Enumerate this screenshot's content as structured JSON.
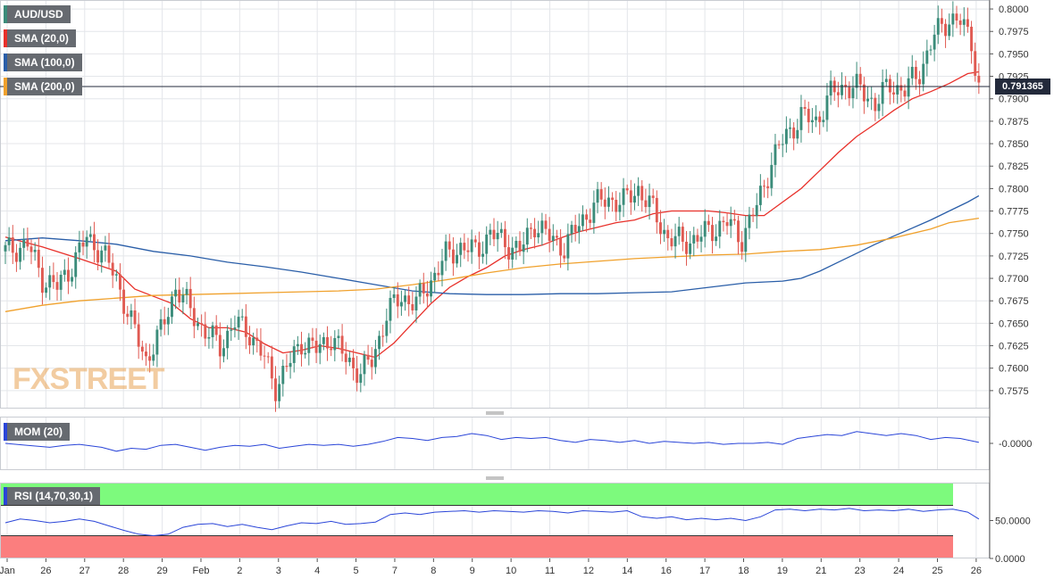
{
  "symbol": "AUD/USD",
  "logo_text": "FXSTREET",
  "indicators": {
    "sma20": "SMA (20,0)",
    "sma100": "SMA (100,0)",
    "sma200": "SMA (200,0)",
    "mom": "MOM (20)",
    "rsi": "RSI (14,70,30,1)"
  },
  "colors": {
    "candle_up": "#3b8c7a",
    "candle_down": "#e05a52",
    "sma20": "#e8302a",
    "sma100": "#2a5ea8",
    "sma200": "#f0a12c",
    "mom_line": "#2a45d8",
    "rsi_line": "#2a45d8",
    "rsi_overbought": "#7dfa7d",
    "rsi_oversold": "#fb7e7e",
    "price_tag": "#232a3b"
  },
  "current_price": "0.791365",
  "mom_axis_label": "-0.0000",
  "rsi_axis_labels": [
    "50.0000",
    "0.0000"
  ],
  "chart_data": {
    "type": "candlestick",
    "title": "AUD/USD",
    "x_tick_labels": [
      "Jan",
      "26",
      "27",
      "28",
      "29",
      "Feb",
      "2",
      "3",
      "4",
      "5",
      "7",
      "8",
      "9",
      "10",
      "11",
      "12",
      "14",
      "16",
      "17",
      "18",
      "19",
      "21",
      "23",
      "24",
      "25",
      "26"
    ],
    "y_tick_labels": [
      "0.8000",
      "0.7975",
      "0.7950",
      "0.7925",
      "0.7900",
      "0.7875",
      "0.7850",
      "0.7825",
      "0.7800",
      "0.7775",
      "0.7750",
      "0.7725",
      "0.7700",
      "0.7675",
      "0.7650",
      "0.7625",
      "0.7600",
      "0.7575"
    ],
    "ylim": [
      0.7555,
      0.801
    ],
    "grid": true,
    "current_price": 0.791365,
    "close_path": [
      [
        0,
        0.773
      ],
      [
        6,
        0.7738
      ],
      [
        10,
        0.77
      ],
      [
        14,
        0.769
      ],
      [
        18,
        0.7715
      ],
      [
        22,
        0.7745
      ],
      [
        26,
        0.773
      ],
      [
        30,
        0.77
      ],
      [
        34,
        0.765
      ],
      [
        38,
        0.761
      ],
      [
        42,
        0.764
      ],
      [
        46,
        0.769
      ],
      [
        50,
        0.7665
      ],
      [
        54,
        0.764
      ],
      [
        58,
        0.7625
      ],
      [
        62,
        0.765
      ],
      [
        66,
        0.764
      ],
      [
        70,
        0.761
      ],
      [
        73,
        0.758
      ],
      [
        76,
        0.76
      ],
      [
        80,
        0.763
      ],
      [
        84,
        0.762
      ],
      [
        88,
        0.7635
      ],
      [
        92,
        0.761
      ],
      [
        96,
        0.7595
      ],
      [
        99,
        0.7608
      ],
      [
        103,
        0.766
      ],
      [
        107,
        0.768
      ],
      [
        111,
        0.7672
      ],
      [
        115,
        0.7698
      ],
      [
        119,
        0.7725
      ],
      [
        123,
        0.7735
      ],
      [
        127,
        0.773
      ],
      [
        131,
        0.775
      ],
      [
        135,
        0.774
      ],
      [
        139,
        0.773
      ],
      [
        143,
        0.7762
      ],
      [
        147,
        0.7745
      ],
      [
        151,
        0.7735
      ],
      [
        155,
        0.776
      ],
      [
        159,
        0.7782
      ],
      [
        163,
        0.7788
      ],
      [
        167,
        0.7785
      ],
      [
        171,
        0.78
      ],
      [
        175,
        0.7775
      ],
      [
        179,
        0.7745
      ],
      [
        183,
        0.774
      ],
      [
        187,
        0.7745
      ],
      [
        191,
        0.7755
      ],
      [
        195,
        0.7762
      ],
      [
        199,
        0.7745
      ],
      [
        203,
        0.778
      ],
      [
        207,
        0.783
      ],
      [
        211,
        0.786
      ],
      [
        215,
        0.788
      ],
      [
        219,
        0.7875
      ],
      [
        223,
        0.7905
      ],
      [
        227,
        0.7915
      ],
      [
        231,
        0.791
      ],
      [
        235,
        0.7895
      ],
      [
        239,
        0.7915
      ],
      [
        243,
        0.791
      ],
      [
        247,
        0.793
      ],
      [
        251,
        0.797
      ],
      [
        255,
        0.799
      ],
      [
        258,
        0.7985
      ],
      [
        261,
        0.7965
      ],
      [
        263,
        0.7913
      ]
    ],
    "series": [
      {
        "name": "SMA (20,0)",
        "points": [
          [
            0,
            0.7746
          ],
          [
            10,
            0.7735
          ],
          [
            20,
            0.7722
          ],
          [
            30,
            0.7708
          ],
          [
            35,
            0.7688
          ],
          [
            40,
            0.768
          ],
          [
            45,
            0.7672
          ],
          [
            50,
            0.7655
          ],
          [
            55,
            0.7645
          ],
          [
            60,
            0.7645
          ],
          [
            65,
            0.764
          ],
          [
            70,
            0.7627
          ],
          [
            75,
            0.7617
          ],
          [
            80,
            0.762
          ],
          [
            85,
            0.7625
          ],
          [
            90,
            0.7622
          ],
          [
            95,
            0.7617
          ],
          [
            100,
            0.7612
          ],
          [
            105,
            0.7628
          ],
          [
            110,
            0.765
          ],
          [
            115,
            0.7672
          ],
          [
            120,
            0.769
          ],
          [
            125,
            0.7702
          ],
          [
            130,
            0.7712
          ],
          [
            135,
            0.7725
          ],
          [
            140,
            0.7732
          ],
          [
            145,
            0.7737
          ],
          [
            150,
            0.7745
          ],
          [
            155,
            0.7752
          ],
          [
            160,
            0.7757
          ],
          [
            165,
            0.7762
          ],
          [
            170,
            0.7765
          ],
          [
            175,
            0.7772
          ],
          [
            180,
            0.7775
          ],
          [
            185,
            0.7775
          ],
          [
            190,
            0.7775
          ],
          [
            195,
            0.7773
          ],
          [
            200,
            0.777
          ],
          [
            205,
            0.777
          ],
          [
            210,
            0.7785
          ],
          [
            215,
            0.78
          ],
          [
            220,
            0.782
          ],
          [
            225,
            0.784
          ],
          [
            230,
            0.7858
          ],
          [
            235,
            0.7872
          ],
          [
            240,
            0.7887
          ],
          [
            245,
            0.79
          ],
          [
            250,
            0.7908
          ],
          [
            255,
            0.7917
          ],
          [
            260,
            0.7928
          ],
          [
            263,
            0.793
          ]
        ]
      },
      {
        "name": "SMA (100,0)",
        "points": [
          [
            0,
            0.7742
          ],
          [
            10,
            0.7745
          ],
          [
            20,
            0.7742
          ],
          [
            30,
            0.7738
          ],
          [
            40,
            0.773
          ],
          [
            50,
            0.7725
          ],
          [
            60,
            0.7718
          ],
          [
            70,
            0.7713
          ],
          [
            80,
            0.7707
          ],
          [
            90,
            0.77
          ],
          [
            100,
            0.7693
          ],
          [
            110,
            0.7686
          ],
          [
            120,
            0.7683
          ],
          [
            130,
            0.7682
          ],
          [
            140,
            0.7682
          ],
          [
            150,
            0.7683
          ],
          [
            160,
            0.7683
          ],
          [
            170,
            0.7684
          ],
          [
            180,
            0.7685
          ],
          [
            190,
            0.769
          ],
          [
            200,
            0.7695
          ],
          [
            210,
            0.7697
          ],
          [
            215,
            0.77
          ],
          [
            220,
            0.7708
          ],
          [
            225,
            0.7718
          ],
          [
            230,
            0.7728
          ],
          [
            235,
            0.7738
          ],
          [
            240,
            0.7747
          ],
          [
            245,
            0.7756
          ],
          [
            250,
            0.7765
          ],
          [
            255,
            0.7775
          ],
          [
            260,
            0.7785
          ],
          [
            263,
            0.7792
          ]
        ]
      },
      {
        "name": "SMA (200,0)",
        "points": [
          [
            0,
            0.7663
          ],
          [
            10,
            0.767
          ],
          [
            20,
            0.7675
          ],
          [
            30,
            0.7678
          ],
          [
            40,
            0.7681
          ],
          [
            50,
            0.7682
          ],
          [
            60,
            0.7683
          ],
          [
            70,
            0.7684
          ],
          [
            80,
            0.7685
          ],
          [
            90,
            0.7686
          ],
          [
            100,
            0.7688
          ],
          [
            110,
            0.7693
          ],
          [
            120,
            0.7699
          ],
          [
            130,
            0.7706
          ],
          [
            140,
            0.7712
          ],
          [
            150,
            0.7716
          ],
          [
            160,
            0.7719
          ],
          [
            170,
            0.7722
          ],
          [
            180,
            0.7724
          ],
          [
            190,
            0.7726
          ],
          [
            200,
            0.7727
          ],
          [
            210,
            0.773
          ],
          [
            220,
            0.7732
          ],
          [
            230,
            0.7737
          ],
          [
            240,
            0.7745
          ],
          [
            250,
            0.7755
          ],
          [
            255,
            0.7762
          ],
          [
            263,
            0.7767
          ]
        ]
      }
    ],
    "momentum": [
      [
        0,
        0.0
      ],
      [
        6,
        -0.1
      ],
      [
        12,
        -0.2
      ],
      [
        16,
        -0.1
      ],
      [
        20,
        -0.05
      ],
      [
        26,
        -0.2
      ],
      [
        30,
        -0.4
      ],
      [
        34,
        -0.25
      ],
      [
        38,
        -0.3
      ],
      [
        42,
        -0.1
      ],
      [
        46,
        -0.05
      ],
      [
        50,
        -0.2
      ],
      [
        54,
        -0.35
      ],
      [
        58,
        -0.2
      ],
      [
        62,
        -0.1
      ],
      [
        66,
        -0.15
      ],
      [
        70,
        -0.05
      ],
      [
        74,
        -0.25
      ],
      [
        78,
        -0.15
      ],
      [
        82,
        -0.05
      ],
      [
        86,
        -0.1
      ],
      [
        90,
        -0.05
      ],
      [
        94,
        -0.15
      ],
      [
        98,
        -0.05
      ],
      [
        102,
        0.1
      ],
      [
        106,
        0.3
      ],
      [
        110,
        0.25
      ],
      [
        114,
        0.15
      ],
      [
        118,
        0.3
      ],
      [
        122,
        0.35
      ],
      [
        126,
        0.5
      ],
      [
        130,
        0.4
      ],
      [
        134,
        0.2
      ],
      [
        138,
        0.3
      ],
      [
        142,
        0.25
      ],
      [
        146,
        0.3
      ],
      [
        150,
        0.15
      ],
      [
        154,
        0.05
      ],
      [
        158,
        0.2
      ],
      [
        162,
        0.15
      ],
      [
        166,
        0.05
      ],
      [
        170,
        0.15
      ],
      [
        174,
        0.0
      ],
      [
        178,
        0.1
      ],
      [
        182,
        0.05
      ],
      [
        186,
        0.0
      ],
      [
        190,
        0.05
      ],
      [
        194,
        -0.05
      ],
      [
        198,
        0.0
      ],
      [
        202,
        0.0
      ],
      [
        206,
        0.05
      ],
      [
        210,
        -0.05
      ],
      [
        214,
        0.25
      ],
      [
        218,
        0.35
      ],
      [
        222,
        0.45
      ],
      [
        226,
        0.4
      ],
      [
        230,
        0.6
      ],
      [
        234,
        0.5
      ],
      [
        238,
        0.4
      ],
      [
        242,
        0.5
      ],
      [
        246,
        0.4
      ],
      [
        250,
        0.2
      ],
      [
        254,
        0.3
      ],
      [
        258,
        0.25
      ],
      [
        263,
        0.05
      ]
    ],
    "rsi": [
      [
        0,
        47
      ],
      [
        4,
        52
      ],
      [
        8,
        50
      ],
      [
        12,
        47
      ],
      [
        16,
        49
      ],
      [
        20,
        52
      ],
      [
        24,
        49
      ],
      [
        28,
        43
      ],
      [
        32,
        37
      ],
      [
        36,
        32
      ],
      [
        40,
        30
      ],
      [
        44,
        32
      ],
      [
        48,
        41
      ],
      [
        52,
        45
      ],
      [
        56,
        46
      ],
      [
        60,
        42
      ],
      [
        64,
        45
      ],
      [
        68,
        41
      ],
      [
        72,
        38
      ],
      [
        76,
        43
      ],
      [
        80,
        47
      ],
      [
        84,
        46
      ],
      [
        88,
        49
      ],
      [
        92,
        45
      ],
      [
        96,
        46
      ],
      [
        100,
        48
      ],
      [
        104,
        58
      ],
      [
        108,
        60
      ],
      [
        112,
        58
      ],
      [
        116,
        61
      ],
      [
        120,
        62
      ],
      [
        124,
        63
      ],
      [
        128,
        61
      ],
      [
        132,
        63
      ],
      [
        136,
        62
      ],
      [
        140,
        61
      ],
      [
        144,
        63
      ],
      [
        148,
        62
      ],
      [
        152,
        60
      ],
      [
        156,
        63
      ],
      [
        160,
        62
      ],
      [
        164,
        61
      ],
      [
        168,
        63
      ],
      [
        172,
        55
      ],
      [
        176,
        53
      ],
      [
        180,
        55
      ],
      [
        184,
        51
      ],
      [
        188,
        53
      ],
      [
        192,
        51
      ],
      [
        196,
        53
      ],
      [
        200,
        50
      ],
      [
        204,
        55
      ],
      [
        208,
        64
      ],
      [
        212,
        65
      ],
      [
        216,
        63
      ],
      [
        220,
        65
      ],
      [
        224,
        64
      ],
      [
        228,
        66
      ],
      [
        232,
        63
      ],
      [
        236,
        64
      ],
      [
        240,
        63
      ],
      [
        244,
        65
      ],
      [
        248,
        62
      ],
      [
        252,
        64
      ],
      [
        256,
        65
      ],
      [
        260,
        61
      ],
      [
        263,
        52
      ]
    ],
    "rsi_levels": {
      "overbought": 70,
      "oversold": 30
    }
  }
}
